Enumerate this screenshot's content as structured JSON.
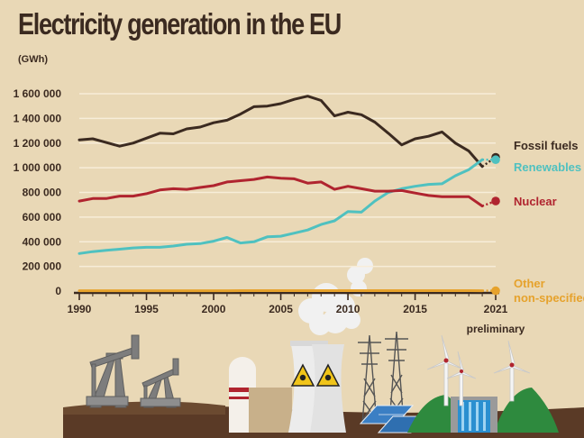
{
  "header": {
    "title": "Electricity generation in the EU",
    "unit": "(GWh)"
  },
  "colors": {
    "background": "#e9d8b6",
    "fossil": "#3b2a20",
    "renewables": "#4fc1c0",
    "nuclear": "#b0242f",
    "other": "#e6a22c",
    "axis": "#3b2a20"
  },
  "chart_data": {
    "type": "line",
    "title": "Electricity generation in the EU",
    "ylabel": "(GWh)",
    "xlim": [
      1990,
      2021
    ],
    "ylim": [
      0,
      1600000
    ],
    "yticks": [
      {
        "value": 0,
        "label": "0"
      },
      {
        "value": 200000,
        "label": "200 000"
      },
      {
        "value": 400000,
        "label": "400 000"
      },
      {
        "value": 600000,
        "label": "600 000"
      },
      {
        "value": 800000,
        "label": "800 000"
      },
      {
        "value": 1000000,
        "label": "1 000 000"
      },
      {
        "value": 1200000,
        "label": "1 200 000"
      },
      {
        "value": 1400000,
        "label": "1 400 000"
      },
      {
        "value": 1600000,
        "label": "1 600 000"
      }
    ],
    "xticks": [
      {
        "value": 1990,
        "label": "1990"
      },
      {
        "value": 1995,
        "label": "1995"
      },
      {
        "value": 2000,
        "label": "2000"
      },
      {
        "value": 2005,
        "label": "2005"
      },
      {
        "value": 2010,
        "label": "2010"
      },
      {
        "value": 2015,
        "label": "2015"
      },
      {
        "value": 2021,
        "label": "2021"
      }
    ],
    "x_note": "preliminary",
    "grid": true,
    "legend": "right",
    "x": [
      1990,
      1991,
      1992,
      1993,
      1994,
      1995,
      1996,
      1997,
      1998,
      1999,
      2000,
      2001,
      2002,
      2003,
      2004,
      2005,
      2006,
      2007,
      2008,
      2009,
      2010,
      2011,
      2012,
      2013,
      2014,
      2015,
      2016,
      2017,
      2018,
      2019,
      2020
    ],
    "series": [
      {
        "name": "Fossil fuels",
        "color": "#3b2a20",
        "values": [
          1225000,
          1235000,
          1205000,
          1175000,
          1200000,
          1240000,
          1280000,
          1275000,
          1315000,
          1330000,
          1365000,
          1385000,
          1435000,
          1495000,
          1500000,
          1520000,
          1555000,
          1580000,
          1545000,
          1420000,
          1450000,
          1430000,
          1370000,
          1280000,
          1185000,
          1235000,
          1255000,
          1290000,
          1200000,
          1135000,
          1010000
        ],
        "preliminary": 1085000
      },
      {
        "name": "Renewables",
        "color": "#4fc1c0",
        "values": [
          305000,
          320000,
          330000,
          340000,
          350000,
          355000,
          355000,
          365000,
          380000,
          385000,
          405000,
          435000,
          390000,
          400000,
          440000,
          445000,
          470000,
          495000,
          540000,
          570000,
          645000,
          640000,
          730000,
          800000,
          830000,
          850000,
          865000,
          870000,
          935000,
          985000,
          1065000
        ],
        "preliminary": 1065000
      },
      {
        "name": "Nuclear",
        "color": "#b0242f",
        "values": [
          730000,
          750000,
          750000,
          770000,
          770000,
          790000,
          820000,
          830000,
          825000,
          840000,
          855000,
          885000,
          895000,
          905000,
          925000,
          915000,
          910000,
          875000,
          885000,
          825000,
          850000,
          830000,
          810000,
          810000,
          815000,
          795000,
          775000,
          765000,
          765000,
          765000,
          690000
        ],
        "preliminary": 730000
      },
      {
        "name": "Other\nnon-specified",
        "name_lines": [
          "Other",
          "non-specified"
        ],
        "color": "#e6a22c",
        "values": [
          3000,
          3000,
          3000,
          3000,
          3000,
          3000,
          3000,
          3000,
          3000,
          3000,
          3000,
          3000,
          4000,
          4000,
          4000,
          4000,
          4000,
          4000,
          4000,
          4000,
          4000,
          4000,
          4000,
          4000,
          4000,
          4000,
          4000,
          4000,
          4000,
          4000,
          3000
        ],
        "preliminary": 3000
      }
    ]
  }
}
